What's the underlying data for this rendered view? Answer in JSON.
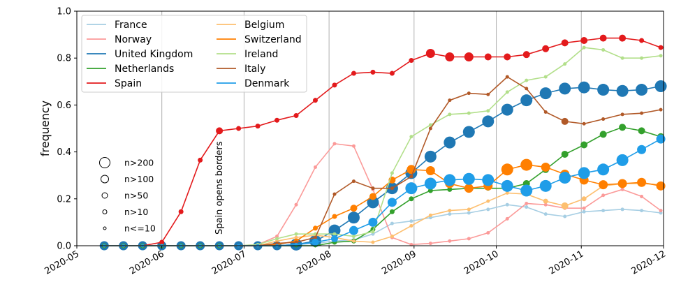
{
  "chart_data": {
    "type": "line",
    "ylabel": "frequency",
    "xlabel": "",
    "ylim": [
      0,
      1
    ],
    "xlim": [
      "2020-05-01",
      "2020-12-01"
    ],
    "grid": "vertical lines at month boundaries",
    "legend_position": "top-left",
    "x_ticks": [
      "2020-05",
      "2020-06",
      "2020-07",
      "2020-08",
      "2020-09",
      "2020-10",
      "2020-11",
      "2020-12"
    ],
    "y_ticks": [
      "0.0",
      "0.2",
      "0.4",
      "0.6",
      "0.8",
      "1.0"
    ],
    "marker_size_legend": [
      "n>200",
      "n>100",
      "n>50",
      "n>10",
      "n<=10"
    ],
    "annotation": {
      "text": "Spain opens borders",
      "x": "2020-06-21"
    },
    "x": [
      "2020-05-11",
      "2020-05-18",
      "2020-05-25",
      "2020-06-01",
      "2020-06-08",
      "2020-06-15",
      "2020-06-22",
      "2020-06-29",
      "2020-07-06",
      "2020-07-13",
      "2020-07-20",
      "2020-07-27",
      "2020-08-03",
      "2020-08-10",
      "2020-08-17",
      "2020-08-24",
      "2020-08-31",
      "2020-09-07",
      "2020-09-14",
      "2020-09-21",
      "2020-09-28",
      "2020-10-05",
      "2020-10-12",
      "2020-10-19",
      "2020-10-26",
      "2020-11-02",
      "2020-11-09",
      "2020-11-16",
      "2020-11-23",
      "2020-11-30"
    ],
    "series": [
      {
        "name": "France",
        "color": "#a6cee3",
        "values": [
          0,
          0,
          0,
          0,
          0,
          0,
          0,
          0,
          0,
          0,
          0.005,
          0.01,
          0.02,
          0.025,
          0.05,
          0.095,
          0.105,
          0.12,
          0.135,
          0.14,
          0.155,
          0.175,
          0.165,
          0.135,
          0.125,
          0.145,
          0.15,
          0.155,
          0.15,
          0.14
        ],
        "sizes": [
          4,
          4,
          4,
          4,
          2,
          2,
          2,
          1,
          1,
          1,
          1,
          1,
          1,
          1,
          1,
          1,
          1,
          1,
          1,
          1,
          1,
          1,
          1,
          1,
          1,
          1,
          1,
          1,
          1,
          1
        ]
      },
      {
        "name": "Norway",
        "color": "#fb9a99",
        "values": [
          0,
          0,
          0,
          0,
          0,
          0,
          0,
          0,
          0.005,
          0.04,
          0.175,
          0.335,
          0.435,
          0.425,
          0.24,
          0.035,
          0.005,
          0.01,
          0.02,
          0.03,
          0.055,
          0.115,
          0.18,
          0.175,
          0.16,
          0.16,
          0.215,
          0.24,
          0.21,
          0.15
        ],
        "sizes": [
          1,
          1,
          1,
          1,
          1,
          1,
          1,
          1,
          1,
          1,
          1,
          1,
          1,
          1,
          1,
          1,
          1,
          1,
          1,
          1,
          1,
          1,
          1,
          1,
          1,
          1,
          1,
          1,
          1,
          1
        ]
      },
      {
        "name": "United Kingdom",
        "color": "#1f78b4",
        "values": [
          0,
          0,
          0,
          0,
          0,
          0,
          0,
          0,
          0,
          0,
          0.005,
          0.02,
          0.065,
          0.12,
          0.185,
          0.245,
          0.31,
          0.38,
          0.44,
          0.485,
          0.53,
          0.58,
          0.62,
          0.65,
          0.67,
          0.675,
          0.665,
          0.66,
          0.665,
          0.68
        ],
        "sizes": [
          4,
          4,
          4,
          4,
          4,
          4,
          4,
          4,
          4,
          4,
          5,
          5,
          5,
          5,
          5,
          5,
          5,
          5,
          5,
          5,
          5,
          5,
          5,
          5,
          5,
          5,
          5,
          5,
          5,
          5
        ]
      },
      {
        "name": "Netherlands",
        "color": "#33a02c",
        "values": [
          0,
          0,
          0,
          0,
          0,
          0,
          0,
          0,
          0,
          0,
          0,
          0,
          0.015,
          0.02,
          0.07,
          0.145,
          0.2,
          0.235,
          0.24,
          0.245,
          0.245,
          0.245,
          0.265,
          0.325,
          0.39,
          0.43,
          0.475,
          0.505,
          0.49,
          0.465
        ],
        "sizes": [
          2,
          2,
          2,
          2,
          2,
          2,
          2,
          1,
          1,
          1,
          1,
          1,
          2,
          2,
          2,
          2,
          2,
          2,
          2,
          2,
          2,
          2,
          3,
          3,
          3,
          3,
          3,
          3,
          3,
          3
        ]
      },
      {
        "name": "Spain",
        "color": "#e31a1c",
        "values": [
          0,
          0,
          0,
          0.015,
          0.145,
          0.365,
          0.49,
          0.5,
          0.51,
          0.535,
          0.555,
          0.62,
          0.685,
          0.735,
          0.74,
          0.735,
          0.79,
          0.82,
          0.805,
          0.805,
          0.805,
          0.805,
          0.815,
          0.84,
          0.865,
          0.875,
          0.885,
          0.885,
          0.875,
          0.845
        ],
        "sizes": [
          1,
          1,
          1,
          2,
          2,
          2,
          3,
          2,
          2,
          2,
          2,
          2,
          2,
          2,
          2,
          2,
          2,
          4,
          4,
          4,
          3,
          3,
          3,
          3,
          3,
          3,
          3,
          3,
          2,
          2
        ]
      },
      {
        "name": "Belgium",
        "color": "#fdbf6f",
        "values": [
          0,
          0,
          0,
          0,
          0,
          0,
          0,
          0,
          0,
          0.02,
          0.035,
          0.045,
          0.035,
          0.02,
          0.015,
          0.04,
          0.085,
          0.13,
          0.15,
          0.155,
          0.19,
          0.225,
          0.22,
          0.19,
          0.17,
          0.2,
          0.255,
          0.265,
          0.265,
          0.26
        ],
        "sizes": [
          1,
          1,
          1,
          1,
          1,
          1,
          1,
          1,
          1,
          1,
          1,
          1,
          1,
          1,
          1,
          1,
          1,
          1,
          1,
          1,
          1,
          1,
          1,
          2,
          3,
          2,
          2,
          2,
          1,
          1
        ]
      },
      {
        "name": "Switzerland",
        "color": "#ff7f00",
        "values": [
          0,
          0,
          0,
          0,
          0,
          0,
          0,
          0,
          0,
          0.005,
          0.02,
          0.075,
          0.125,
          0.16,
          0.21,
          0.28,
          0.325,
          0.32,
          0.265,
          0.245,
          0.255,
          0.325,
          0.345,
          0.335,
          0.305,
          0.28,
          0.26,
          0.265,
          0.27,
          0.255
        ],
        "sizes": [
          1,
          1,
          1,
          1,
          1,
          1,
          1,
          1,
          1,
          1,
          2,
          2,
          2,
          3,
          3,
          3,
          4,
          4,
          4,
          4,
          4,
          5,
          5,
          4,
          4,
          4,
          4,
          4,
          4,
          4
        ]
      },
      {
        "name": "Ireland",
        "color": "#b2df8a",
        "values": [
          0,
          0,
          0,
          0,
          0,
          0,
          0,
          0,
          0.005,
          0.03,
          0.05,
          0.05,
          0.05,
          0.04,
          0.06,
          0.31,
          0.465,
          0.515,
          0.56,
          0.565,
          0.575,
          0.655,
          0.705,
          0.72,
          0.775,
          0.845,
          0.835,
          0.8,
          0.8,
          0.81
        ],
        "sizes": [
          1,
          1,
          1,
          1,
          1,
          1,
          1,
          1,
          1,
          1,
          1,
          1,
          1,
          1,
          1,
          1,
          1,
          1,
          1,
          1,
          1,
          1,
          1,
          1,
          1,
          1,
          1,
          1,
          1,
          1
        ]
      },
      {
        "name": "Italy",
        "color": "#b15928",
        "values": [
          0,
          0,
          0,
          0,
          0,
          0,
          0,
          0,
          0,
          0.01,
          0.015,
          0.035,
          0.22,
          0.275,
          0.245,
          0.245,
          0.295,
          0.5,
          0.62,
          0.65,
          0.645,
          0.72,
          0.67,
          0.57,
          0.53,
          0.52,
          0.54,
          0.56,
          0.565,
          0.58
        ],
        "sizes": [
          1,
          1,
          1,
          1,
          1,
          1,
          1,
          1,
          1,
          1,
          1,
          1,
          1,
          1,
          1,
          1,
          1,
          1,
          1,
          1,
          1,
          1,
          1,
          1,
          3,
          1,
          1,
          1,
          1,
          1
        ]
      },
      {
        "name": "Denmark",
        "color": "#1f9de8",
        "values": [
          0,
          0,
          0,
          0,
          0,
          0,
          0,
          0,
          0,
          0,
          0.005,
          0.015,
          0.03,
          0.065,
          0.1,
          0.185,
          0.245,
          0.265,
          0.28,
          0.285,
          0.28,
          0.255,
          0.235,
          0.255,
          0.29,
          0.31,
          0.325,
          0.365,
          0.41,
          0.455
        ],
        "sizes": [
          1,
          1,
          1,
          1,
          1,
          1,
          1,
          1,
          1,
          1,
          1,
          3,
          3,
          4,
          4,
          4,
          5,
          5,
          5,
          5,
          5,
          5,
          5,
          5,
          5,
          5,
          5,
          5,
          4,
          4
        ]
      }
    ]
  }
}
